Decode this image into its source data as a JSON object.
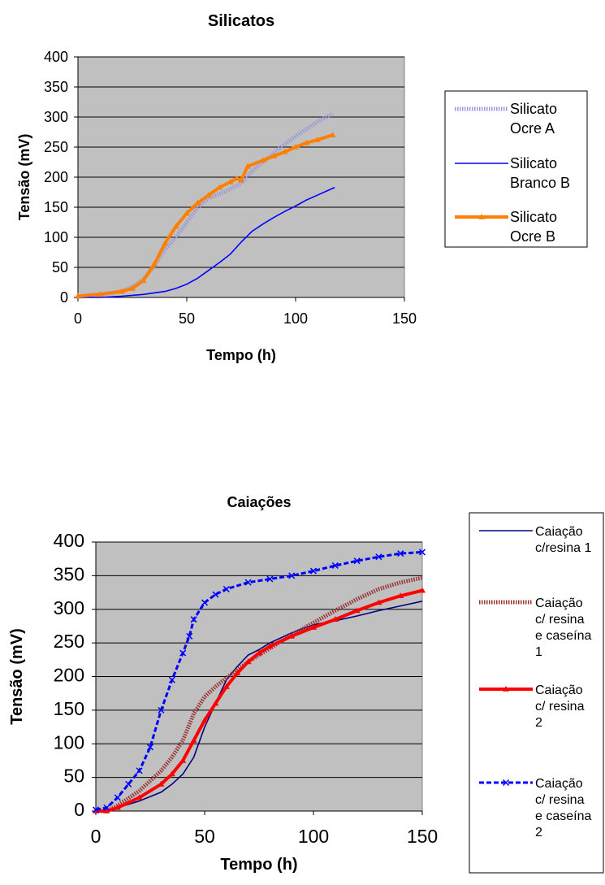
{
  "chart_data": [
    {
      "type": "line",
      "title": "Silicatos",
      "xlabel": "Tempo (h)",
      "ylabel": "Tensão (mV)",
      "xlim": [
        0,
        150
      ],
      "ylim": [
        0,
        400
      ],
      "x_ticks": [
        "0",
        "50",
        "100",
        "150"
      ],
      "y_ticks": [
        "0",
        "50",
        "100",
        "150",
        "200",
        "250",
        "300",
        "350",
        "400"
      ],
      "grid": "horizontal",
      "legend_position": "right",
      "series": [
        {
          "name": "Silicato Ocre A",
          "color": "#9a9ad8",
          "style": "hatched",
          "x": [
            0,
            10,
            20,
            25,
            30,
            35,
            40,
            45,
            50,
            55,
            60,
            65,
            70,
            75,
            80,
            85,
            90,
            95,
            100,
            105,
            110,
            117
          ],
          "y": [
            2,
            5,
            10,
            18,
            30,
            52,
            80,
            100,
            125,
            150,
            165,
            172,
            180,
            190,
            210,
            225,
            240,
            255,
            268,
            280,
            292,
            305
          ]
        },
        {
          "name": "Silicato Branco B",
          "color": "#0000ff",
          "style": "solid",
          "x": [
            0,
            10,
            20,
            30,
            40,
            45,
            50,
            55,
            60,
            65,
            70,
            75,
            80,
            85,
            90,
            95,
            100,
            105,
            110,
            118
          ],
          "y": [
            0,
            0,
            2,
            5,
            10,
            15,
            22,
            32,
            45,
            58,
            72,
            92,
            110,
            122,
            133,
            143,
            152,
            162,
            170,
            183
          ]
        },
        {
          "name": "Silicato Ocre B",
          "color": "#ff8000",
          "style": "triangles",
          "x": [
            0,
            10,
            20,
            25,
            30,
            35,
            40,
            45,
            50,
            55,
            60,
            65,
            70,
            73,
            75,
            78,
            85,
            90,
            95,
            100,
            105,
            110,
            117
          ],
          "y": [
            2,
            5,
            10,
            15,
            28,
            55,
            90,
            118,
            140,
            157,
            170,
            183,
            192,
            198,
            195,
            218,
            228,
            235,
            242,
            250,
            257,
            262,
            270
          ]
        }
      ]
    },
    {
      "type": "line",
      "title": "Caiações",
      "xlabel": "Tempo (h)",
      "ylabel": "Tensão (mV)",
      "xlim": [
        0,
        150
      ],
      "ylim": [
        0,
        400
      ],
      "x_ticks": [
        "0",
        "50",
        "100",
        "150"
      ],
      "y_ticks": [
        "0",
        "50",
        "100",
        "150",
        "200",
        "250",
        "300",
        "350",
        "400"
      ],
      "grid": "horizontal",
      "legend_position": "right",
      "series": [
        {
          "name": "Caiação c/resina 1",
          "color": "#000080",
          "style": "solid",
          "x": [
            0,
            5,
            10,
            20,
            30,
            35,
            40,
            45,
            50,
            55,
            60,
            65,
            70,
            75,
            80,
            90,
            100,
            110,
            120,
            130,
            140,
            150
          ],
          "y": [
            0,
            0,
            5,
            15,
            28,
            40,
            55,
            80,
            125,
            160,
            195,
            215,
            232,
            240,
            250,
            265,
            277,
            283,
            290,
            298,
            305,
            312
          ]
        },
        {
          "name": "Caiação c/ resina e caseína 1",
          "color": "#993333",
          "style": "hatched",
          "x": [
            0,
            5,
            10,
            20,
            30,
            35,
            40,
            45,
            50,
            55,
            60,
            65,
            70,
            75,
            80,
            90,
            100,
            110,
            120,
            130,
            140,
            150
          ],
          "y": [
            0,
            0,
            8,
            30,
            60,
            80,
            105,
            145,
            170,
            185,
            198,
            210,
            222,
            232,
            242,
            262,
            280,
            298,
            315,
            330,
            340,
            347
          ]
        },
        {
          "name": "Caiação c/ resina 2",
          "color": "#ff0000",
          "style": "triangles",
          "x": [
            0,
            5,
            10,
            20,
            30,
            35,
            40,
            45,
            50,
            55,
            60,
            65,
            70,
            75,
            80,
            90,
            100,
            110,
            120,
            130,
            140,
            150
          ],
          "y": [
            0,
            0,
            5,
            20,
            40,
            55,
            75,
            105,
            135,
            160,
            185,
            205,
            222,
            235,
            245,
            260,
            273,
            285,
            298,
            310,
            320,
            328
          ]
        },
        {
          "name": "Caiação c/ resina e caseína 2",
          "color": "#0000ff",
          "style": "crosses",
          "x": [
            0,
            5,
            10,
            15,
            20,
            25,
            30,
            35,
            40,
            43,
            45,
            50,
            55,
            60,
            70,
            80,
            90,
            100,
            110,
            120,
            130,
            140,
            150
          ],
          "y": [
            2,
            5,
            20,
            40,
            60,
            95,
            150,
            195,
            235,
            260,
            285,
            310,
            322,
            330,
            340,
            345,
            350,
            357,
            365,
            372,
            378,
            383,
            385
          ]
        }
      ]
    }
  ]
}
